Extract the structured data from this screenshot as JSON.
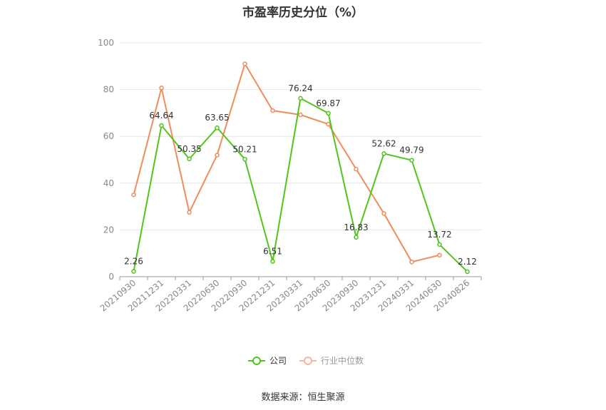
{
  "chart_data": {
    "type": "line",
    "title": "市盈率历史分位（%）",
    "categories": [
      "20210930",
      "20211231",
      "20220331",
      "20220630",
      "20220930",
      "20221231",
      "20230331",
      "20230630",
      "20230930",
      "20231231",
      "20240331",
      "20240630",
      "20240826"
    ],
    "series": [
      {
        "name": "公司",
        "color": "#52c41a",
        "show_labels": true,
        "values": [
          2.26,
          64.64,
          50.35,
          63.65,
          50.21,
          6.51,
          76.24,
          69.87,
          16.83,
          52.62,
          49.79,
          13.72,
          2.12
        ]
      },
      {
        "name": "行业中位数",
        "color": "#f08c5a",
        "show_labels": false,
        "values": [
          35,
          80.7,
          27.5,
          52,
          91,
          71,
          69.2,
          65.2,
          46,
          27,
          6.3,
          9.2,
          null
        ]
      }
    ],
    "ylim": [
      0,
      100
    ],
    "yticks": [
      0,
      20,
      40,
      60,
      80,
      100
    ],
    "grid": true,
    "legend_position": "bottom-center"
  },
  "footer": {
    "source": "数据来源：恒生聚源"
  }
}
